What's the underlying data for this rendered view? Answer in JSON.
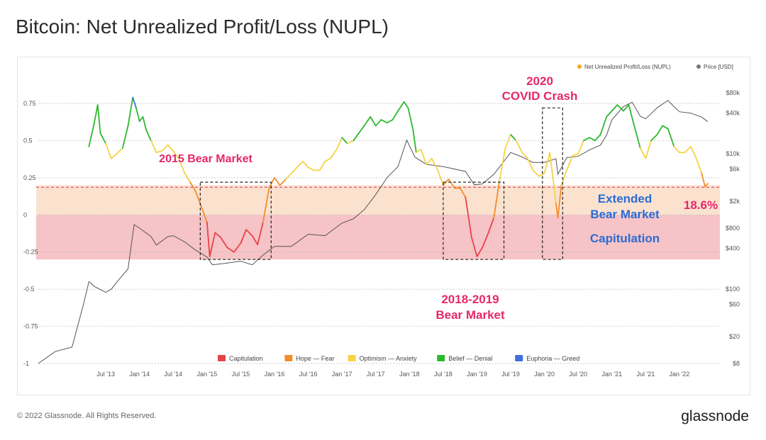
{
  "page": {
    "title": "Bitcoin: Net Unrealized Profit/Loss (NUPL)",
    "copyright": "© 2022 Glassnode. All Rights Reserved.",
    "brand": "glassnode"
  },
  "chart_data": {
    "type": "line",
    "title": "Bitcoin: Net Unrealized Profit/Loss (NUPL)",
    "legend_top": [
      "Net Unrealized Profit/Loss (NUPL)",
      "Price [USD]"
    ],
    "legend_bottom": [
      {
        "label": "Capitulation",
        "color": "#e8434a"
      },
      {
        "label": "Hope — Fear",
        "color": "#f28d2b"
      },
      {
        "label": "Optimism — Anxiety",
        "color": "#f5d347"
      },
      {
        "label": "Belief — Denial",
        "color": "#2eb82e"
      },
      {
        "label": "Euphoria — Greed",
        "color": "#3f6fde"
      }
    ],
    "watermark": "glassnode",
    "x_ticks": [
      "Jul '13",
      "Jan '14",
      "Jul '14",
      "Jan '15",
      "Jul '15",
      "Jan '16",
      "Jul '16",
      "Jan '17",
      "Jul '17",
      "Jan '18",
      "Jul '18",
      "Jan '19",
      "Jul '19",
      "Jan '20",
      "Jul '20",
      "Jan '21",
      "Jul '21",
      "Jan '22"
    ],
    "y_left_ticks": [
      "0.75",
      "0.5",
      "0.25",
      "0",
      "-0.25",
      "-0.5",
      "-0.75",
      "-1"
    ],
    "y_right_ticks": [
      "$80k",
      "$40k",
      "$10k",
      "$6k",
      "$2k",
      "$800",
      "$400",
      "$100",
      "$60",
      "$20",
      "$8"
    ],
    "ylim_left": [
      -1,
      0.95
    ],
    "bands": [
      {
        "name": "Extended Bear Market",
        "from": 0,
        "to": 0.2,
        "color": "#fbe2cf"
      },
      {
        "name": "Capitulation",
        "from": -0.3,
        "to": 0,
        "color": "#f6c3c6"
      }
    ],
    "threshold": {
      "value": 0.186,
      "label": "18.6%"
    },
    "annotations": {
      "bear_2015": "2015 Bear Market",
      "covid_line1": "2020",
      "covid_line2": "COVID Crash",
      "bear_2018_line1": "2018-2019",
      "bear_2018_line2": "Bear Market",
      "extended_line1": "Extended",
      "extended_line2": "Bear Market",
      "capitulation": "Capitulation",
      "pct": "18.6%"
    },
    "colors": {
      "capitulation": "#e8434a",
      "hope": "#f28d2b",
      "optimism": "#f5d347",
      "belief": "#2eb82e",
      "euphoria": "#3f6fde",
      "price": "#555555",
      "annotation_pink": "#e5286b",
      "annotation_blue": "#2a6bd6",
      "legend_nupl_dot": "#f5a623",
      "legend_price_dot": "#777777"
    },
    "nupl_series": [
      [
        2013.25,
        0.46
      ],
      [
        2013.33,
        0.62
      ],
      [
        2013.38,
        0.74
      ],
      [
        2013.42,
        0.55
      ],
      [
        2013.5,
        0.48
      ],
      [
        2013.58,
        0.38
      ],
      [
        2013.66,
        0.41
      ],
      [
        2013.75,
        0.45
      ],
      [
        2013.83,
        0.6
      ],
      [
        2013.9,
        0.79
      ],
      [
        2013.95,
        0.72
      ],
      [
        2014.0,
        0.63
      ],
      [
        2014.05,
        0.66
      ],
      [
        2014.1,
        0.57
      ],
      [
        2014.17,
        0.5
      ],
      [
        2014.25,
        0.42
      ],
      [
        2014.33,
        0.43
      ],
      [
        2014.42,
        0.47
      ],
      [
        2014.5,
        0.43
      ],
      [
        2014.58,
        0.38
      ],
      [
        2014.67,
        0.28
      ],
      [
        2014.75,
        0.22
      ],
      [
        2014.83,
        0.16
      ],
      [
        2014.92,
        0.05
      ],
      [
        2015.0,
        -0.05
      ],
      [
        2015.04,
        -0.28
      ],
      [
        2015.08,
        -0.2
      ],
      [
        2015.12,
        -0.12
      ],
      [
        2015.2,
        -0.15
      ],
      [
        2015.3,
        -0.22
      ],
      [
        2015.4,
        -0.25
      ],
      [
        2015.5,
        -0.19
      ],
      [
        2015.58,
        -0.1
      ],
      [
        2015.67,
        -0.14
      ],
      [
        2015.75,
        -0.2
      ],
      [
        2015.83,
        -0.05
      ],
      [
        2015.92,
        0.18
      ],
      [
        2016.0,
        0.25
      ],
      [
        2016.08,
        0.2
      ],
      [
        2016.17,
        0.24
      ],
      [
        2016.25,
        0.28
      ],
      [
        2016.42,
        0.36
      ],
      [
        2016.5,
        0.32
      ],
      [
        2016.58,
        0.3
      ],
      [
        2016.67,
        0.3
      ],
      [
        2016.75,
        0.36
      ],
      [
        2016.83,
        0.38
      ],
      [
        2016.92,
        0.44
      ],
      [
        2017.0,
        0.52
      ],
      [
        2017.08,
        0.48
      ],
      [
        2017.17,
        0.5
      ],
      [
        2017.25,
        0.55
      ],
      [
        2017.33,
        0.6
      ],
      [
        2017.42,
        0.66
      ],
      [
        2017.5,
        0.6
      ],
      [
        2017.58,
        0.64
      ],
      [
        2017.67,
        0.62
      ],
      [
        2017.75,
        0.64
      ],
      [
        2017.83,
        0.7
      ],
      [
        2017.92,
        0.76
      ],
      [
        2017.98,
        0.72
      ],
      [
        2018.05,
        0.58
      ],
      [
        2018.1,
        0.42
      ],
      [
        2018.17,
        0.44
      ],
      [
        2018.25,
        0.34
      ],
      [
        2018.33,
        0.38
      ],
      [
        2018.42,
        0.3
      ],
      [
        2018.5,
        0.2
      ],
      [
        2018.58,
        0.24
      ],
      [
        2018.67,
        0.18
      ],
      [
        2018.75,
        0.18
      ],
      [
        2018.83,
        0.12
      ],
      [
        2018.92,
        -0.15
      ],
      [
        2019.0,
        -0.28
      ],
      [
        2019.08,
        -0.22
      ],
      [
        2019.17,
        -0.12
      ],
      [
        2019.25,
        -0.02
      ],
      [
        2019.33,
        0.22
      ],
      [
        2019.42,
        0.45
      ],
      [
        2019.5,
        0.54
      ],
      [
        2019.58,
        0.5
      ],
      [
        2019.67,
        0.42
      ],
      [
        2019.75,
        0.38
      ],
      [
        2019.83,
        0.3
      ],
      [
        2019.92,
        0.26
      ],
      [
        2020.0,
        0.28
      ],
      [
        2020.08,
        0.42
      ],
      [
        2020.17,
        0.08
      ],
      [
        2020.2,
        -0.02
      ],
      [
        2020.25,
        0.2
      ],
      [
        2020.33,
        0.3
      ],
      [
        2020.42,
        0.4
      ],
      [
        2020.5,
        0.41
      ],
      [
        2020.58,
        0.5
      ],
      [
        2020.67,
        0.52
      ],
      [
        2020.75,
        0.5
      ],
      [
        2020.83,
        0.54
      ],
      [
        2020.92,
        0.66
      ],
      [
        2021.0,
        0.7
      ],
      [
        2021.08,
        0.74
      ],
      [
        2021.17,
        0.7
      ],
      [
        2021.25,
        0.74
      ],
      [
        2021.33,
        0.6
      ],
      [
        2021.42,
        0.45
      ],
      [
        2021.5,
        0.38
      ],
      [
        2021.58,
        0.5
      ],
      [
        2021.67,
        0.54
      ],
      [
        2021.75,
        0.6
      ],
      [
        2021.83,
        0.58
      ],
      [
        2021.92,
        0.46
      ],
      [
        2022.0,
        0.42
      ],
      [
        2022.08,
        0.42
      ],
      [
        2022.17,
        0.46
      ],
      [
        2022.25,
        0.38
      ],
      [
        2022.33,
        0.28
      ],
      [
        2022.38,
        0.19
      ],
      [
        2022.42,
        0.21
      ]
    ],
    "price_series": [
      [
        2012.5,
        8
      ],
      [
        2012.75,
        12
      ],
      [
        2013.0,
        14
      ],
      [
        2013.17,
        60
      ],
      [
        2013.25,
        130
      ],
      [
        2013.33,
        110
      ],
      [
        2013.5,
        90
      ],
      [
        2013.58,
        100
      ],
      [
        2013.67,
        130
      ],
      [
        2013.83,
        200
      ],
      [
        2013.92,
        900
      ],
      [
        2014.0,
        800
      ],
      [
        2014.08,
        700
      ],
      [
        2014.17,
        600
      ],
      [
        2014.25,
        450
      ],
      [
        2014.42,
        600
      ],
      [
        2014.5,
        620
      ],
      [
        2014.67,
        500
      ],
      [
        2014.83,
        380
      ],
      [
        2015.0,
        300
      ],
      [
        2015.08,
        230
      ],
      [
        2015.25,
        240
      ],
      [
        2015.5,
        260
      ],
      [
        2015.67,
        230
      ],
      [
        2015.83,
        320
      ],
      [
        2016.0,
        430
      ],
      [
        2016.25,
        430
      ],
      [
        2016.5,
        650
      ],
      [
        2016.75,
        620
      ],
      [
        2017.0,
        950
      ],
      [
        2017.17,
        1100
      ],
      [
        2017.33,
        1500
      ],
      [
        2017.5,
        2500
      ],
      [
        2017.67,
        4500
      ],
      [
        2017.83,
        6500
      ],
      [
        2017.96,
        16000
      ],
      [
        2018.08,
        9000
      ],
      [
        2018.25,
        7000
      ],
      [
        2018.5,
        6500
      ],
      [
        2018.83,
        5500
      ],
      [
        2018.96,
        3500
      ],
      [
        2019.08,
        3600
      ],
      [
        2019.25,
        5000
      ],
      [
        2019.5,
        10500
      ],
      [
        2019.67,
        9000
      ],
      [
        2019.83,
        7500
      ],
      [
        2020.0,
        7500
      ],
      [
        2020.17,
        8500
      ],
      [
        2020.2,
        5000
      ],
      [
        2020.33,
        8800
      ],
      [
        2020.5,
        9200
      ],
      [
        2020.67,
        11500
      ],
      [
        2020.83,
        13500
      ],
      [
        2020.92,
        19000
      ],
      [
        2021.0,
        32000
      ],
      [
        2021.17,
        50000
      ],
      [
        2021.3,
        58000
      ],
      [
        2021.42,
        36000
      ],
      [
        2021.5,
        33000
      ],
      [
        2021.67,
        48000
      ],
      [
        2021.83,
        62000
      ],
      [
        2021.92,
        50000
      ],
      [
        2022.0,
        42000
      ],
      [
        2022.17,
        40000
      ],
      [
        2022.33,
        35000
      ],
      [
        2022.42,
        30000
      ]
    ]
  }
}
